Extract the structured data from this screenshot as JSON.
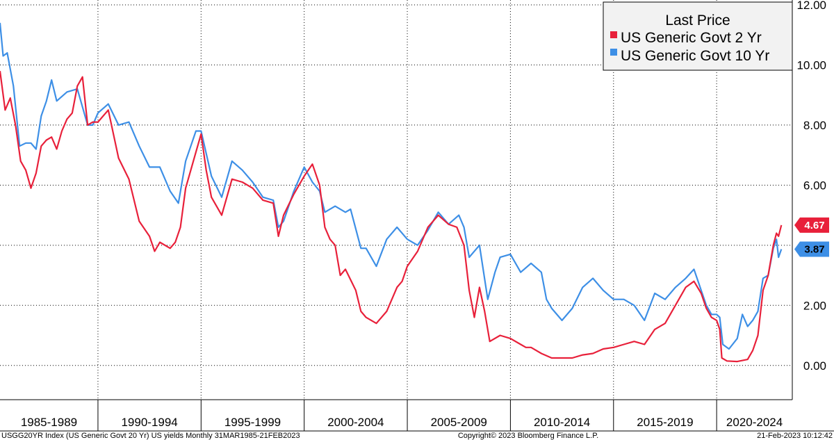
{
  "chart_data": {
    "type": "line",
    "legend_title": "Last Price",
    "legend_position": "top-right",
    "grid": true,
    "x_range": [
      1985.25,
      2023.14
    ],
    "ylim": [
      -1.0,
      12.3
    ],
    "y_ticks": [
      "0.00",
      "2.00",
      "4.00",
      "6.00",
      "8.00",
      "10.00",
      "12.00"
    ],
    "y_tick_values": [
      0,
      2,
      4,
      6,
      8,
      10,
      12
    ],
    "x_periods": [
      {
        "label": "1985-1989",
        "start": 1985,
        "end": 1990
      },
      {
        "label": "1990-1994",
        "start": 1990,
        "end": 1995
      },
      {
        "label": "1995-1999",
        "start": 1995,
        "end": 2000
      },
      {
        "label": "2000-2004",
        "start": 2000,
        "end": 2005
      },
      {
        "label": "2005-2009",
        "start": 2005,
        "end": 2010
      },
      {
        "label": "2010-2014",
        "start": 2010,
        "end": 2015
      },
      {
        "label": "2015-2019",
        "start": 2015,
        "end": 2020
      },
      {
        "label": "2020-2024",
        "start": 2020,
        "end": 2025
      }
    ],
    "series": [
      {
        "name": "US Generic Govt 2 Yr",
        "color": "#e8203a",
        "last_value": "4.67",
        "x": [
          1985.25,
          1985.5,
          1985.75,
          1986.0,
          1986.25,
          1986.5,
          1986.75,
          1987.0,
          1987.25,
          1987.5,
          1987.75,
          1988.0,
          1988.25,
          1988.5,
          1988.75,
          1989.0,
          1989.25,
          1989.5,
          1989.75,
          1990.0,
          1990.5,
          1991.0,
          1991.5,
          1992.0,
          1992.5,
          1992.75,
          1993.0,
          1993.5,
          1993.75,
          1994.0,
          1994.25,
          1994.5,
          1994.75,
          1995.0,
          1995.25,
          1995.5,
          1996.0,
          1996.5,
          1997.0,
          1997.5,
          1998.0,
          1998.5,
          1998.75,
          1999.0,
          1999.5,
          2000.0,
          2000.4,
          2000.75,
          2001.0,
          2001.25,
          2001.5,
          2001.75,
          2002.0,
          2002.5,
          2002.75,
          2003.0,
          2003.5,
          2004.0,
          2004.5,
          2004.75,
          2005.0,
          2005.5,
          2006.0,
          2006.5,
          2007.0,
          2007.4,
          2007.75,
          2008.0,
          2008.25,
          2008.5,
          2008.75,
          2009.0,
          2009.5,
          2010.0,
          2010.5,
          2010.75,
          2011.0,
          2011.5,
          2012.0,
          2012.5,
          2013.0,
          2013.5,
          2014.0,
          2014.5,
          2015.0,
          2015.5,
          2016.0,
          2016.5,
          2017.0,
          2017.5,
          2018.0,
          2018.5,
          2018.9,
          2019.25,
          2019.5,
          2019.75,
          2020.0,
          2020.15,
          2020.25,
          2020.5,
          2021.0,
          2021.5,
          2021.75,
          2022.0,
          2022.25,
          2022.5,
          2022.75,
          2022.9,
          2023.0,
          2023.14
        ],
        "values": [
          9.8,
          8.5,
          8.9,
          8.0,
          6.8,
          6.5,
          5.9,
          6.4,
          7.3,
          7.5,
          7.6,
          7.2,
          7.8,
          8.2,
          8.4,
          9.3,
          9.6,
          8.0,
          8.1,
          8.1,
          8.5,
          6.9,
          6.2,
          4.8,
          4.3,
          3.8,
          4.1,
          3.9,
          4.1,
          4.6,
          5.9,
          6.5,
          7.1,
          7.7,
          6.5,
          5.6,
          5.0,
          6.2,
          6.1,
          5.9,
          5.5,
          5.4,
          4.3,
          5.0,
          5.7,
          6.3,
          6.7,
          6.0,
          4.6,
          4.2,
          4.0,
          3.0,
          3.2,
          2.5,
          1.8,
          1.6,
          1.4,
          1.8,
          2.6,
          2.8,
          3.3,
          3.8,
          4.6,
          5.0,
          4.7,
          4.6,
          4.0,
          2.5,
          1.6,
          2.6,
          1.8,
          0.8,
          1.0,
          0.9,
          0.7,
          0.6,
          0.6,
          0.4,
          0.25,
          0.25,
          0.25,
          0.35,
          0.4,
          0.55,
          0.6,
          0.7,
          0.8,
          0.7,
          1.2,
          1.4,
          2.0,
          2.6,
          2.8,
          2.4,
          1.9,
          1.6,
          1.5,
          1.2,
          0.25,
          0.15,
          0.13,
          0.2,
          0.5,
          1.0,
          2.5,
          3.0,
          4.0,
          4.4,
          4.3,
          4.67
        ]
      },
      {
        "name": "US Generic Govt 10 Yr",
        "color": "#3d8fe6",
        "last_value": "3.87",
        "x": [
          1985.25,
          1985.4,
          1985.6,
          1985.9,
          1986.2,
          1986.5,
          1986.75,
          1987.0,
          1987.25,
          1987.5,
          1987.75,
          1988.0,
          1988.5,
          1989.0,
          1989.5,
          1989.75,
          1990.0,
          1990.5,
          1991.0,
          1991.5,
          1992.0,
          1992.5,
          1993.0,
          1993.5,
          1993.9,
          1994.25,
          1994.5,
          1994.75,
          1995.0,
          1995.5,
          1996.0,
          1996.5,
          1997.0,
          1997.5,
          1998.0,
          1998.5,
          1998.75,
          1999.0,
          1999.5,
          2000.0,
          2000.4,
          2000.75,
          2001.0,
          2001.5,
          2002.0,
          2002.25,
          2002.75,
          2003.0,
          2003.5,
          2004.0,
          2004.5,
          2005.0,
          2005.5,
          2006.0,
          2006.5,
          2007.0,
          2007.5,
          2007.75,
          2008.0,
          2008.5,
          2008.9,
          2009.25,
          2009.5,
          2010.0,
          2010.5,
          2011.0,
          2011.5,
          2011.75,
          2012.0,
          2012.5,
          2013.0,
          2013.5,
          2014.0,
          2014.5,
          2015.0,
          2015.5,
          2016.0,
          2016.5,
          2017.0,
          2017.5,
          2018.0,
          2018.5,
          2018.9,
          2019.25,
          2019.5,
          2019.75,
          2020.0,
          2020.15,
          2020.3,
          2020.6,
          2021.0,
          2021.25,
          2021.5,
          2021.75,
          2022.0,
          2022.25,
          2022.5,
          2022.75,
          2022.9,
          2023.0,
          2023.14
        ],
        "values": [
          11.4,
          10.3,
          10.4,
          9.3,
          7.3,
          7.4,
          7.4,
          7.2,
          8.3,
          8.8,
          9.5,
          8.8,
          9.1,
          9.2,
          8.0,
          8.0,
          8.4,
          8.7,
          8.0,
          8.1,
          7.3,
          6.6,
          6.6,
          5.8,
          5.4,
          6.8,
          7.3,
          7.8,
          7.8,
          6.3,
          5.6,
          6.8,
          6.5,
          6.1,
          5.6,
          5.5,
          4.6,
          4.8,
          5.8,
          6.6,
          6.1,
          5.8,
          5.1,
          5.3,
          5.1,
          5.2,
          3.9,
          3.9,
          3.3,
          4.2,
          4.6,
          4.2,
          4.0,
          4.5,
          5.1,
          4.7,
          5.0,
          4.6,
          3.6,
          4.0,
          2.2,
          3.1,
          3.6,
          3.7,
          3.1,
          3.4,
          3.1,
          2.2,
          1.9,
          1.5,
          1.9,
          2.6,
          2.9,
          2.5,
          2.2,
          2.2,
          2.0,
          1.5,
          2.4,
          2.2,
          2.6,
          2.9,
          3.2,
          2.5,
          2.0,
          1.7,
          1.7,
          1.6,
          0.7,
          0.55,
          0.9,
          1.7,
          1.3,
          1.5,
          1.8,
          2.9,
          3.0,
          3.9,
          4.2,
          3.6,
          3.87
        ]
      }
    ]
  },
  "footer": {
    "left": "USGG20YR Index (US Generic Govt 20 Yr) US yields  Monthly 31MAR1985-21FEB2023",
    "center": "Copyright© 2023 Bloomberg Finance L.P.",
    "right": "21-Feb-2023 10:12:42"
  }
}
